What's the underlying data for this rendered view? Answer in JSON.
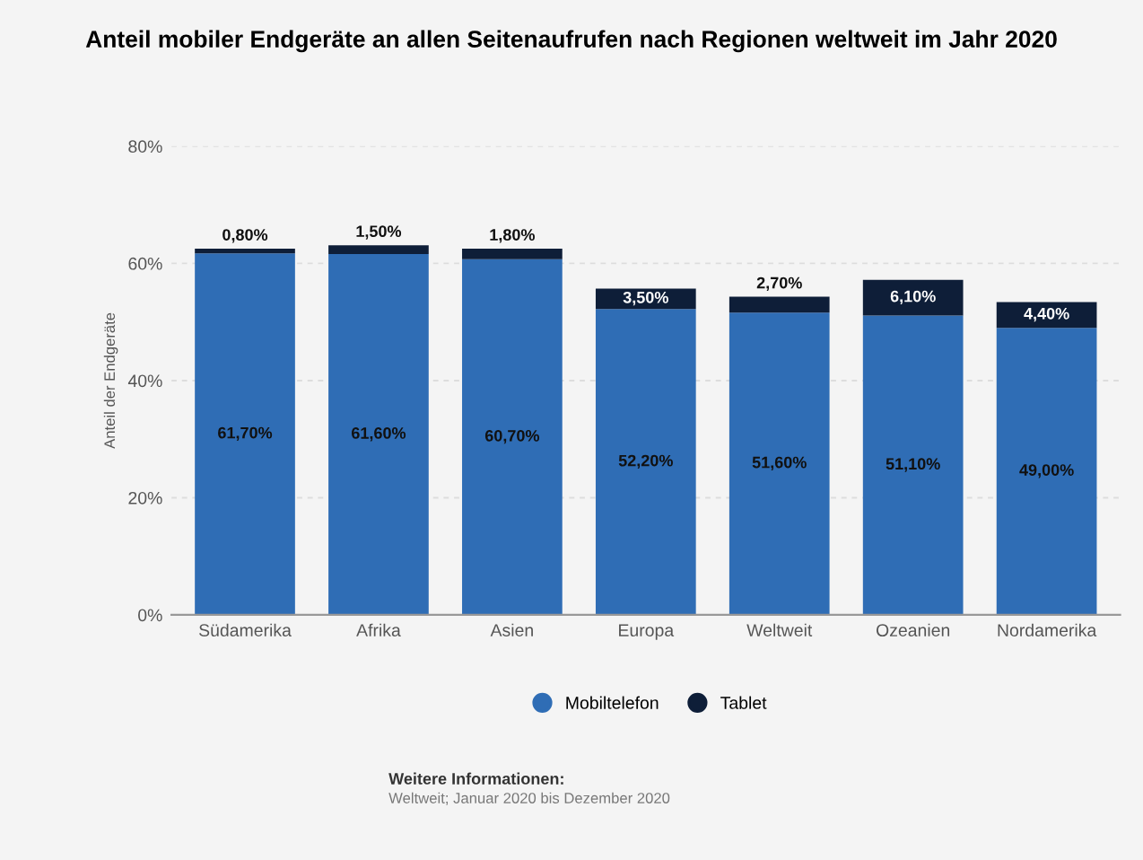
{
  "chart_data": {
    "type": "bar",
    "title": "Anteil mobiler Endgeräte an allen Seitenaufrufen nach Regionen weltweit im Jahr 2020",
    "ylabel": "Anteil der Endgeräte",
    "categories": [
      "Südamerika",
      "Afrika",
      "Asien",
      "Europa",
      "Weltweit",
      "Ozeanien",
      "Nordamerika"
    ],
    "series": [
      {
        "name": "Mobiltelefon",
        "color": "#2f6db5",
        "values": [
          61.7,
          61.6,
          60.7,
          52.2,
          51.6,
          51.1,
          49.0
        ],
        "value_labels": [
          "61,70%",
          "61,60%",
          "60,70%",
          "52,20%",
          "51,60%",
          "51,10%",
          "49,00%"
        ]
      },
      {
        "name": "Tablet",
        "color": "#0e1e38",
        "values": [
          0.8,
          1.5,
          1.8,
          3.5,
          2.7,
          6.1,
          4.4
        ],
        "value_labels": [
          "0,80%",
          "1,50%",
          "1,80%",
          "3,50%",
          "2,70%",
          "6,10%",
          "4,40%"
        ]
      }
    ],
    "stacked": true,
    "ylim": [
      0,
      80
    ],
    "yticks": [
      {
        "value": 0,
        "label": "0%"
      },
      {
        "value": 20,
        "label": "20%"
      },
      {
        "value": 40,
        "label": "40%"
      },
      {
        "value": 60,
        "label": "60%"
      },
      {
        "value": 80,
        "label": "80%"
      }
    ],
    "grid": "y",
    "legend": "bottom",
    "annotations": [
      "Weitere Informationen:",
      "Weltweit; Januar 2020 bis Dezember 2020"
    ]
  }
}
